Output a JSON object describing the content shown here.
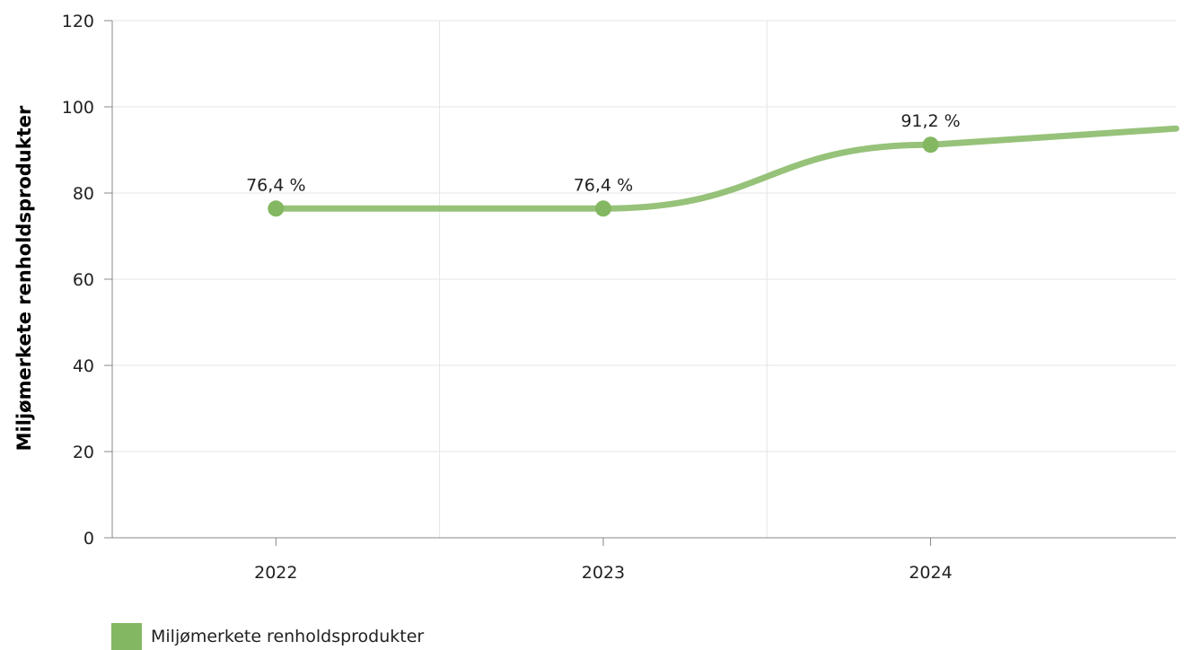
{
  "chart_data": {
    "type": "line",
    "categories": [
      "2022",
      "2023",
      "2024"
    ],
    "series": [
      {
        "name": "Miljømerkete renholdsprodukter",
        "values": [
          76.4,
          76.4,
          91.2
        ],
        "data_labels": [
          "76,4 %",
          "76,4 %",
          "91,2 %"
        ],
        "color": "#84b761"
      }
    ],
    "ylabel": "Miljømerkete renholdsprodukter",
    "xlabel": "",
    "ylim": [
      0,
      120
    ],
    "yticks": [
      "0",
      "20",
      "40",
      "60",
      "80",
      "100",
      "120"
    ],
    "grid": true,
    "legend_position": "bottom-left"
  }
}
